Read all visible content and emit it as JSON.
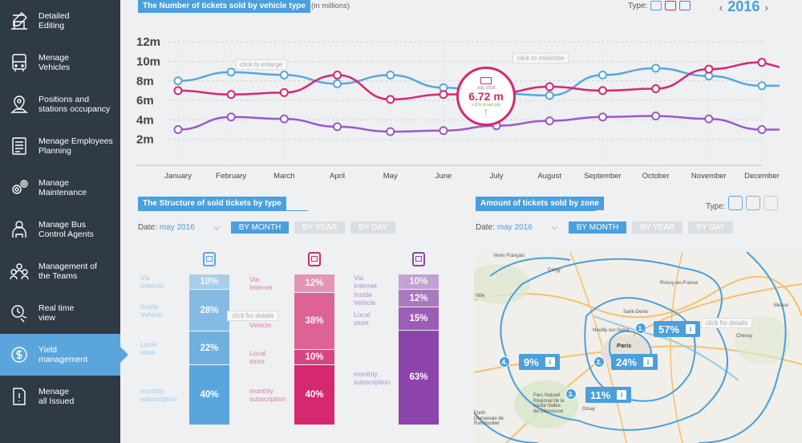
{
  "sidebar": {
    "items": [
      {
        "label": "Detailed\nEditing",
        "icon": "pencil-ruler-icon"
      },
      {
        "label": "Menage\nVehicles",
        "icon": "bus-icon"
      },
      {
        "label": "Positions and\nstations occupancy",
        "icon": "map-pin-icon"
      },
      {
        "label": "Menage Employees\nPlanning",
        "icon": "clipboard-list-icon"
      },
      {
        "label": "Manage\nMaintenance",
        "icon": "gears-icon"
      },
      {
        "label": "Manage Bus\nControl Agents",
        "icon": "agent-icon"
      },
      {
        "label": "Management of\nthe Teams",
        "icon": "team-icon"
      },
      {
        "label": "Real time\nview",
        "icon": "clock-icon"
      },
      {
        "label": "Yield\nmanagement",
        "icon": "dollar-icon",
        "active": true
      },
      {
        "label": "Menage\nall Issued",
        "icon": "warning-doc-icon"
      }
    ]
  },
  "top_chart": {
    "title": "The Number of tickets sold by vehicle type",
    "unit_note": "(in millions)",
    "type_label": "Type:",
    "year": "2016",
    "prev_arrow": "‹",
    "next_arrow": "›",
    "hint_enlarge": "click to enlarge",
    "hint_minimize": "click to minimize",
    "callout": {
      "month": "July 2016",
      "value": "6.72 m",
      "delta": "+11% to last july",
      "arrow": "↑"
    }
  },
  "chart_data": {
    "type": "line",
    "x": [
      "January",
      "February",
      "March",
      "April",
      "May",
      "June",
      "July",
      "August",
      "September",
      "October",
      "November",
      "December"
    ],
    "y_ticks": [
      "12m",
      "10m",
      "8m",
      "6m",
      "4m",
      "2m"
    ],
    "ylim": [
      0,
      13
    ],
    "grid": true,
    "series": [
      {
        "color": "#5aa6dc",
        "values": [
          8.0,
          8.9,
          8.6,
          7.7,
          8.6,
          7.3,
          6.72,
          6.5,
          8.6,
          9.3,
          8.5,
          7.5
        ]
      },
      {
        "color": "#d6286f",
        "values": [
          7.0,
          6.6,
          6.8,
          8.6,
          6.1,
          6.6,
          6.72,
          7.4,
          7.0,
          7.2,
          9.2,
          9.9
        ]
      },
      {
        "color": "#9b59c6",
        "values": [
          3.0,
          4.3,
          4.1,
          3.3,
          2.8,
          2.9,
          3.4,
          3.9,
          4.3,
          4.4,
          4.1,
          3.0
        ]
      }
    ]
  },
  "structure": {
    "title": "The Structure of sold tickets by type",
    "date_label": "Date:",
    "date_value": "may 2016",
    "caret": "⌵",
    "tabs": [
      "BY MONTH",
      "BY YEAR",
      "BY DAY"
    ],
    "hint_details": "click for details",
    "row_labels": [
      "Via\nInternet",
      "Inside\nVehicle",
      "Local\nstore",
      "monthly\nsubscription"
    ],
    "columns": [
      {
        "icon": "bus-icon",
        "color": "#5aa6dc",
        "label_color": "#9fcdee",
        "values": [
          "10%",
          "28%",
          "22%",
          "40%"
        ]
      },
      {
        "icon": "tram-icon",
        "color": "#d6286f",
        "label_color": "#e07aa6",
        "values": [
          "12%",
          "38%",
          "10%",
          "40%"
        ]
      },
      {
        "icon": "metro-icon",
        "color": "#8e44ad",
        "label_color": "#b48bd0",
        "values": [
          "10%",
          "12%",
          "15%",
          "63%"
        ]
      }
    ]
  },
  "zones": {
    "title": "Amount of tickets sold by zone",
    "date_label": "Date:",
    "date_value": "may 2016",
    "caret": "⌵",
    "type_label": "Type:",
    "tabs": [
      "BY MONTH",
      "BY YEAR",
      "BY DAY"
    ],
    "hint_details": "click for details",
    "info_glyph": "i",
    "tags": [
      {
        "num": "1.",
        "value": "57%"
      },
      {
        "num": "2.",
        "value": "24%"
      },
      {
        "num": "3.",
        "value": "11%"
      },
      {
        "num": "4.",
        "value": "9%"
      }
    ],
    "map_labels": [
      "Vexin Français",
      "Cergy",
      "Roissy-en-France",
      "Saint-Denis",
      "Neuilly-sur-Seine",
      "Paris",
      "Chessy",
      "Meaux",
      "Orsay",
      "Parc Naturel\nRégional de la\nHaute Vallée\nde Chevreuse",
      "Forêt\nDomaniale de\nRambouillet",
      "Ville"
    ]
  }
}
